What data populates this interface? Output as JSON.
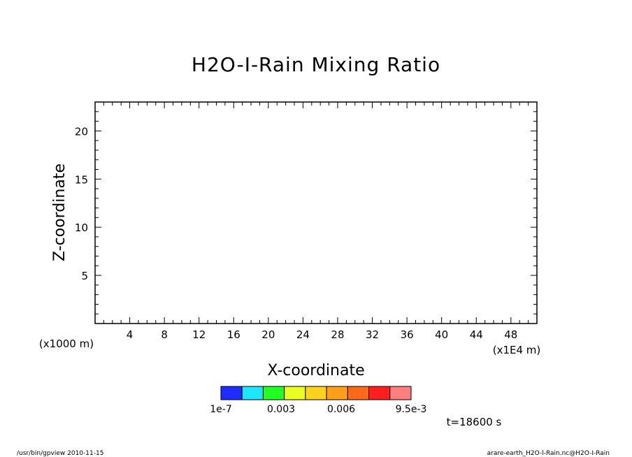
{
  "chart_data": {
    "type": "heatmap",
    "title": "H2O-I-Rain Mixing Ratio",
    "xlabel": "X-coordinate",
    "ylabel": "Z-coordinate",
    "x_unit": "(x1E4 m)",
    "y_unit": "(x1000 m)",
    "xlim": [
      0,
      51
    ],
    "ylim": [
      0,
      23
    ],
    "x_ticks": [
      4,
      8,
      12,
      16,
      20,
      24,
      28,
      32,
      36,
      40,
      44,
      48
    ],
    "y_ticks": [
      5,
      10,
      15,
      20
    ],
    "series": [],
    "colorbar": {
      "colors": [
        "#1f2bff",
        "#1fe5ff",
        "#22ff22",
        "#eaff22",
        "#ffd21f",
        "#ff9f1a",
        "#ff6a1a",
        "#ff1f1f",
        "#ff7f7f"
      ],
      "labels": [
        "1e-7",
        "0.003",
        "0.006",
        "9.5e-3"
      ]
    },
    "time_label": "t=18600 s"
  },
  "footer": {
    "left": "/usr/bin/gpview  2010-11-15",
    "right": "arare-earth_H2O-l-Rain.nc@H2O-I-Rain"
  }
}
